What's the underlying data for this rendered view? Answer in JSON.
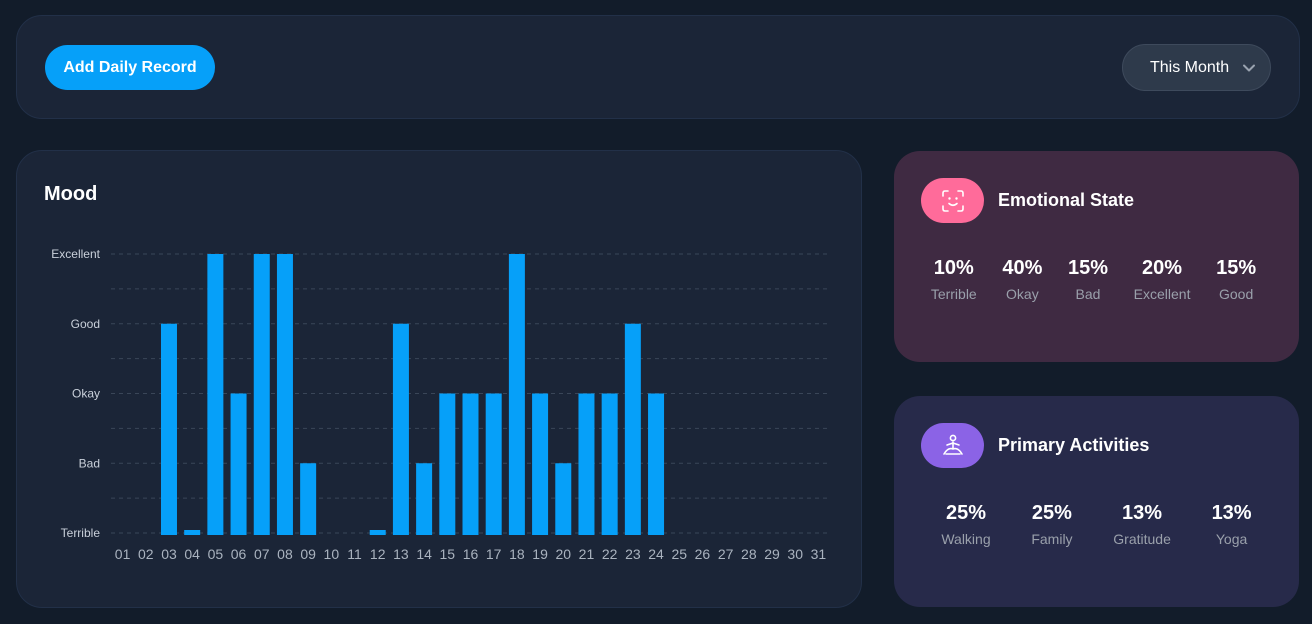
{
  "toolbar": {
    "add_label": "Add Daily Record",
    "period_value": "This Month"
  },
  "mood": {
    "title": "Mood"
  },
  "chart_data": {
    "type": "bar",
    "title": "Mood",
    "y_levels": [
      "Terrible",
      "Bad",
      "Okay",
      "Good",
      "Excellent"
    ],
    "ylim": [
      0,
      4
    ],
    "categories": [
      "01",
      "02",
      "03",
      "04",
      "05",
      "06",
      "07",
      "08",
      "09",
      "10",
      "11",
      "12",
      "13",
      "14",
      "15",
      "16",
      "17",
      "18",
      "19",
      "20",
      "21",
      "22",
      "23",
      "24",
      "25",
      "26",
      "27",
      "28",
      "29",
      "30",
      "31"
    ],
    "values": [
      null,
      null,
      3,
      0,
      4,
      2,
      4,
      4,
      1,
      null,
      null,
      0,
      3,
      1,
      2,
      2,
      2,
      4,
      2,
      1,
      2,
      2,
      3,
      2,
      null,
      null,
      null,
      null,
      null,
      null,
      null
    ],
    "color": "#06a0f9",
    "grid": true
  },
  "emotional_state": {
    "title": "Emotional State",
    "icon": "smiley-face-icon",
    "accent": "#ff6b9a",
    "stats": [
      {
        "value": "10%",
        "label": "Terrible"
      },
      {
        "value": "40%",
        "label": "Okay"
      },
      {
        "value": "15%",
        "label": "Bad"
      },
      {
        "value": "20%",
        "label": "Excellent"
      },
      {
        "value": "15%",
        "label": "Good"
      }
    ]
  },
  "primary_activities": {
    "title": "Primary Activities",
    "icon": "meditation-icon",
    "accent": "#8b63e6",
    "stats": [
      {
        "value": "25%",
        "label": "Walking"
      },
      {
        "value": "25%",
        "label": "Family"
      },
      {
        "value": "13%",
        "label": "Gratitude"
      },
      {
        "value": "13%",
        "label": "Yoga"
      }
    ]
  }
}
